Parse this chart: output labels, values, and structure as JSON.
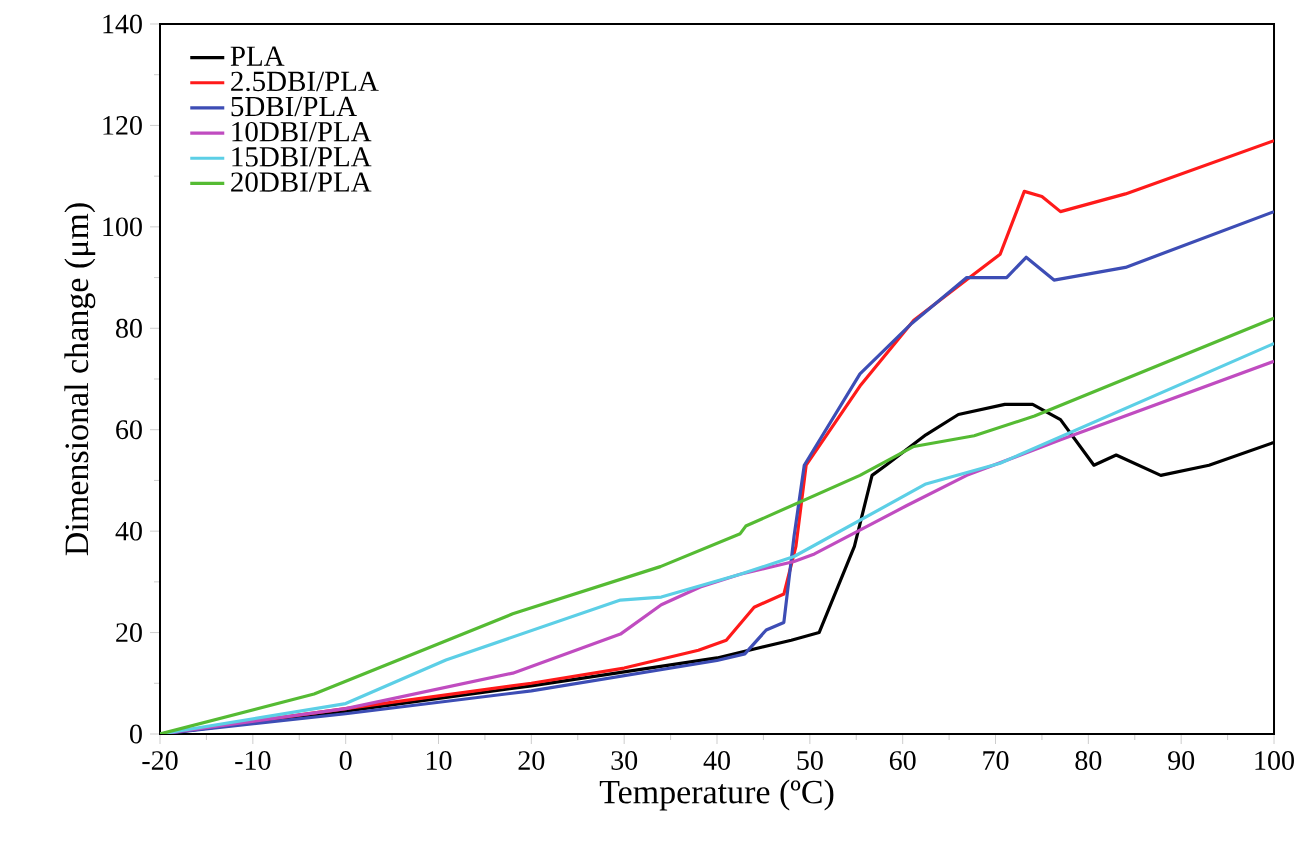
{
  "chart_data": {
    "type": "line",
    "xlabel": "Temperature (ºC)",
    "ylabel": "Dimensional change (μm)",
    "xlim": [
      -20,
      100
    ],
    "ylim": [
      0,
      140
    ],
    "xticks": [
      -20,
      -10,
      0,
      10,
      20,
      30,
      40,
      50,
      60,
      70,
      80,
      90,
      100
    ],
    "yticks": [
      0,
      20,
      40,
      60,
      80,
      100,
      120,
      140
    ],
    "legend": "top left",
    "grid": false,
    "line_style": "solid",
    "marker": "none",
    "series": [
      {
        "name": "PLA",
        "color": "#000000",
        "x": [
          -20,
          0,
          20,
          40,
          48,
          51,
          54.8,
          56.7,
          58.2,
          62.5,
          66,
          71,
          74,
          77,
          80.6,
          83,
          87.8,
          93,
          100
        ],
        "values": [
          0,
          4.5,
          9.5,
          15,
          18.5,
          20,
          37,
          51,
          53,
          59,
          63,
          65,
          65,
          62,
          53,
          55,
          51,
          53,
          57.5
        ]
      },
      {
        "name": "2.5DBI/PLA",
        "color": "#ff1a1a",
        "x": [
          -20,
          0,
          20,
          30,
          38,
          41,
          44,
          47.2,
          48.5,
          49.6,
          55.4,
          61.2,
          67.7,
          70.5,
          73.1,
          75,
          77,
          84,
          100
        ],
        "values": [
          0,
          5,
          10,
          13,
          16.5,
          18.5,
          25,
          27.6,
          37,
          53,
          68.6,
          81.6,
          90.7,
          94.6,
          107,
          106,
          103,
          106.5,
          117
        ]
      },
      {
        "name": "5DBI/PLA",
        "color": "#3d4db5",
        "x": [
          -20,
          0,
          20,
          40,
          43,
          45.3,
          47.2,
          48.3,
          49.4,
          55.4,
          61,
          66.9,
          71.2,
          73.3,
          76.3,
          84,
          100
        ],
        "values": [
          0,
          4,
          8.5,
          14.5,
          15.8,
          20.5,
          22,
          39,
          53,
          71,
          81,
          90,
          90,
          94,
          89.5,
          92,
          103
        ]
      },
      {
        "name": "10DBI/PLA",
        "color": "#c04cc0",
        "x": [
          -20,
          0,
          18,
          29.6,
          34,
          38.2,
          42.5,
          48.3,
          50.5,
          60.4,
          66.9,
          77,
          100
        ],
        "values": [
          0,
          5,
          12,
          19.7,
          25.5,
          29,
          31.5,
          34,
          35.5,
          45,
          51,
          58,
          73.5
        ]
      },
      {
        "name": "15DBI/PLA",
        "color": "#5ccfe6",
        "x": [
          -20,
          0,
          10.8,
          29.6,
          34,
          42.5,
          48.3,
          62.5,
          70.5,
          100
        ],
        "values": [
          0,
          6,
          14.6,
          26.4,
          27,
          31.5,
          35,
          49.3,
          53.4,
          77
        ]
      },
      {
        "name": "20DBI/PLA",
        "color": "#55bb33",
        "x": [
          -20,
          -3.4,
          18,
          33.9,
          42.5,
          43.1,
          55.4,
          61.2,
          67.7,
          74.2,
          100
        ],
        "values": [
          0,
          7.9,
          23.7,
          33,
          39.5,
          41,
          51,
          56.7,
          58.8,
          62.7,
          82
        ]
      }
    ]
  }
}
